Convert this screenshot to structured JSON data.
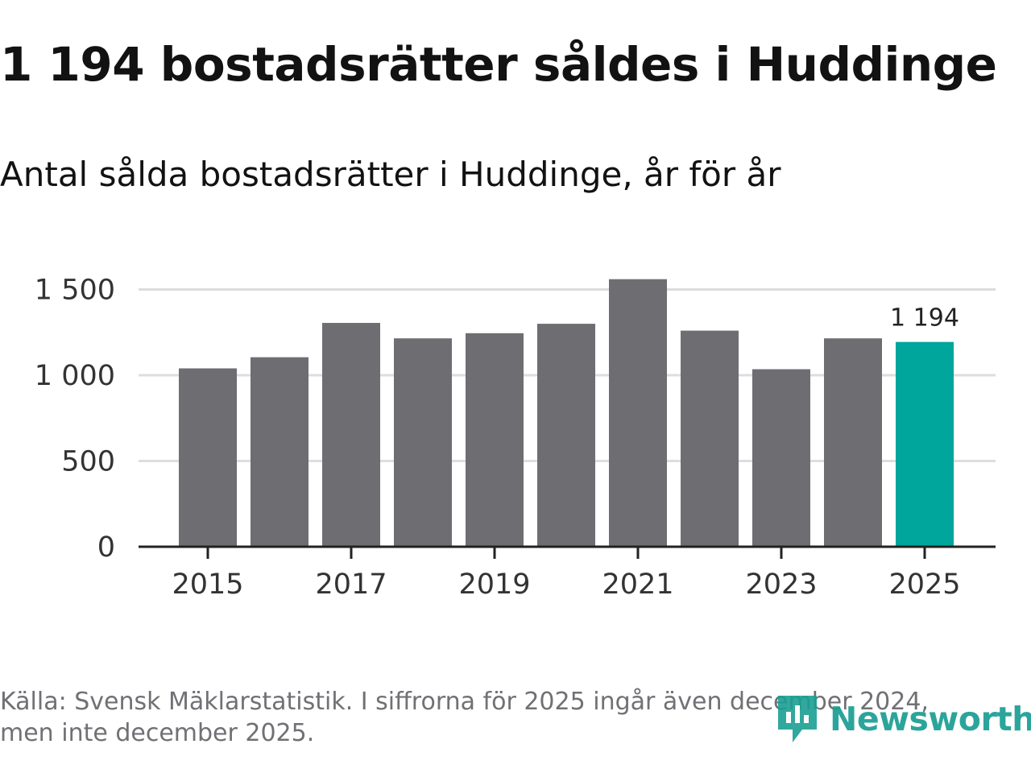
{
  "header": {
    "title": "1 194 bostadsrätter såldes i Huddinge",
    "subtitle": "Antal sålda bostadsrätter i Huddinge, år för år"
  },
  "chart_data": {
    "type": "bar",
    "title": "1 194 bostadsrätter såldes i Huddinge",
    "subtitle": "Antal sålda bostadsrätter i Huddinge, år för år",
    "categories": [
      "2015",
      "2016",
      "2017",
      "2018",
      "2019",
      "2020",
      "2021",
      "2022",
      "2023",
      "2024",
      "2025"
    ],
    "values": [
      1040,
      1105,
      1305,
      1215,
      1245,
      1300,
      1560,
      1260,
      1035,
      1215,
      1194
    ],
    "xlabel": "",
    "ylabel": "",
    "ylim": [
      0,
      1650
    ],
    "yticks": [
      0,
      500,
      1000,
      1500
    ],
    "ytick_labels": [
      "0",
      "500",
      "1 000",
      "1 500"
    ],
    "xtick_labels": [
      "2015",
      "2017",
      "2019",
      "2021",
      "2023",
      "2025"
    ],
    "grid": true,
    "highlight_index": 10,
    "highlight_label": "1 194",
    "colors": {
      "bar": "#6e6d72",
      "highlight": "#00a59b",
      "grid": "#dddddd",
      "axis": "#222222"
    }
  },
  "footer": {
    "source_line1": "Källa: Svensk Mäklarstatistik. I siffrorna för 2025 ingår även december 2024,",
    "source_line2": "men inte december 2025.",
    "brand_name": "Newsworthy",
    "brand_icon": "newsworthy-logo-icon",
    "brand_color": "#1a9e93"
  }
}
